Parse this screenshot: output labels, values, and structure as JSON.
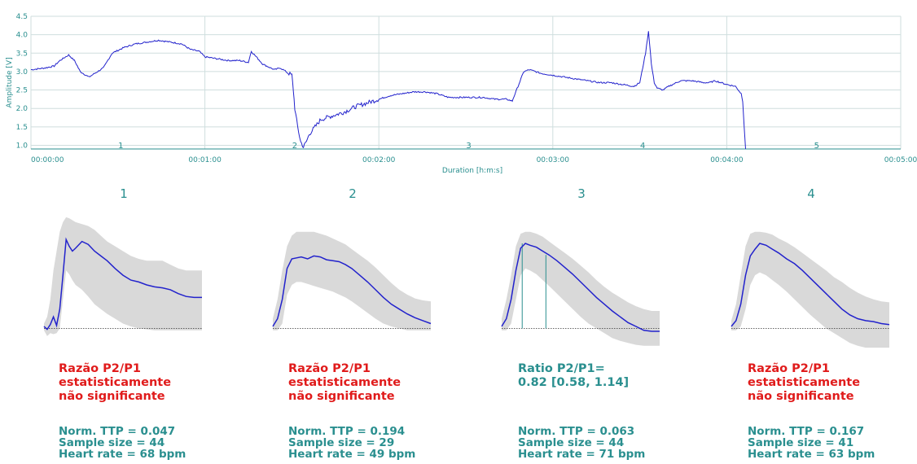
{
  "chart_data": [
    {
      "type": "line",
      "title": "",
      "xlabel": "Duration [h:m:s]",
      "ylabel": "Amplitude [V]",
      "ylim": [
        0.9,
        4.5
      ],
      "xlim": [
        "00:00:00",
        "00:05:00"
      ],
      "y_ticks": [
        "1.0",
        "1.5",
        "2.0",
        "2.5",
        "3.0",
        "3.5",
        "4.0",
        "4.5"
      ],
      "x_ticks": [
        "00:00:00",
        "00:01:00",
        "00:02:00",
        "00:03:00",
        "00:04:00",
        "00:05:00"
      ],
      "grid": true,
      "line_color": "#2222cc",
      "segment_labels": [
        {
          "label": "1",
          "x": "00:00:31"
        },
        {
          "label": "2",
          "x": "00:01:31"
        },
        {
          "label": "3",
          "x": "00:02:31"
        },
        {
          "label": "4",
          "x": "00:03:31"
        },
        {
          "label": "5",
          "x": "00:04:31"
        }
      ],
      "x_seconds": [
        0,
        5,
        8,
        10,
        13,
        15,
        17,
        20,
        22,
        25,
        28,
        32,
        36,
        40,
        44,
        48,
        52,
        55,
        58,
        60,
        64,
        68,
        72,
        75,
        76,
        80,
        84,
        86,
        88,
        90,
        90.5,
        91,
        92,
        93,
        94,
        95,
        96,
        98,
        100,
        104,
        108,
        112,
        116,
        120,
        124,
        128,
        132,
        136,
        140,
        144,
        148,
        152,
        156,
        160,
        164,
        166,
        168,
        170,
        172,
        176,
        180,
        184,
        188,
        192,
        196,
        200,
        204,
        208,
        210,
        212,
        213,
        214,
        215,
        216,
        218,
        220,
        224,
        228,
        232,
        234,
        236,
        238,
        240,
        243,
        245,
        245.5,
        246,
        246.5
      ],
      "y_values": [
        3.05,
        3.1,
        3.15,
        3.3,
        3.45,
        3.3,
        3.0,
        2.85,
        2.95,
        3.1,
        3.5,
        3.65,
        3.75,
        3.8,
        3.85,
        3.8,
        3.75,
        3.6,
        3.55,
        3.4,
        3.35,
        3.3,
        3.3,
        3.25,
        3.55,
        3.2,
        3.05,
        3.1,
        3.0,
        2.9,
        2.5,
        2.0,
        1.5,
        1.1,
        0.95,
        1.1,
        1.3,
        1.5,
        1.7,
        1.8,
        1.9,
        2.05,
        2.15,
        2.25,
        2.35,
        2.4,
        2.45,
        2.45,
        2.4,
        2.3,
        2.3,
        2.3,
        2.3,
        2.25,
        2.25,
        2.2,
        2.6,
        3.0,
        3.05,
        2.95,
        2.9,
        2.85,
        2.8,
        2.75,
        2.7,
        2.7,
        2.65,
        2.6,
        2.7,
        3.5,
        4.1,
        3.2,
        2.7,
        2.55,
        2.5,
        2.6,
        2.75,
        2.75,
        2.7,
        2.7,
        2.75,
        2.7,
        2.65,
        2.6,
        2.4,
        2.2,
        1.5,
        0.9
      ]
    },
    {
      "type": "area",
      "title": "1",
      "x": [
        0,
        0.02,
        0.04,
        0.06,
        0.08,
        0.1,
        0.12,
        0.14,
        0.16,
        0.18,
        0.2,
        0.24,
        0.28,
        0.32,
        0.36,
        0.4,
        0.45,
        0.5,
        0.55,
        0.6,
        0.65,
        0.7,
        0.75,
        0.8,
        0.85,
        0.9,
        0.95,
        1.0
      ],
      "mean": [
        0.02,
        -0.01,
        0.04,
        0.12,
        0.03,
        0.2,
        0.55,
        0.92,
        0.85,
        0.8,
        0.83,
        0.9,
        0.87,
        0.8,
        0.75,
        0.7,
        0.62,
        0.55,
        0.5,
        0.48,
        0.45,
        0.43,
        0.42,
        0.4,
        0.36,
        0.33,
        0.32,
        0.32
      ],
      "upper": [
        0.05,
        0.12,
        0.3,
        0.6,
        0.8,
        1.0,
        1.1,
        1.15,
        1.14,
        1.12,
        1.1,
        1.08,
        1.06,
        1.02,
        0.96,
        0.9,
        0.85,
        0.8,
        0.75,
        0.72,
        0.7,
        0.7,
        0.7,
        0.66,
        0.62,
        0.6,
        0.6,
        0.6
      ],
      "lower": [
        -0.02,
        -0.08,
        -0.05,
        -0.06,
        -0.05,
        0.0,
        0.3,
        0.6,
        0.56,
        0.5,
        0.45,
        0.4,
        0.33,
        0.25,
        0.2,
        0.15,
        0.1,
        0.05,
        0.02,
        0.0,
        -0.01,
        -0.02,
        -0.02,
        -0.02,
        -0.02,
        -0.02,
        -0.02,
        -0.02
      ],
      "baseline": 0,
      "markers": []
    },
    {
      "type": "area",
      "title": "2",
      "x": [
        0,
        0.03,
        0.06,
        0.09,
        0.12,
        0.15,
        0.18,
        0.22,
        0.26,
        0.3,
        0.34,
        0.38,
        0.42,
        0.46,
        0.5,
        0.55,
        0.6,
        0.65,
        0.7,
        0.75,
        0.8,
        0.85,
        0.9,
        0.95,
        1.0
      ],
      "mean": [
        0.02,
        0.1,
        0.3,
        0.62,
        0.72,
        0.73,
        0.74,
        0.72,
        0.75,
        0.74,
        0.71,
        0.7,
        0.69,
        0.66,
        0.62,
        0.55,
        0.48,
        0.4,
        0.32,
        0.25,
        0.2,
        0.15,
        0.11,
        0.08,
        0.05
      ],
      "upper": [
        0.1,
        0.3,
        0.6,
        0.85,
        0.96,
        1.0,
        1.0,
        1.0,
        1.0,
        0.98,
        0.96,
        0.93,
        0.9,
        0.87,
        0.82,
        0.76,
        0.7,
        0.63,
        0.55,
        0.47,
        0.4,
        0.35,
        0.31,
        0.29,
        0.28
      ],
      "lower": [
        -0.02,
        -0.02,
        0.05,
        0.35,
        0.45,
        0.48,
        0.48,
        0.46,
        0.44,
        0.42,
        0.4,
        0.38,
        0.35,
        0.32,
        0.28,
        0.22,
        0.16,
        0.1,
        0.05,
        0.02,
        0.0,
        -0.02,
        -0.02,
        -0.02,
        -0.02
      ],
      "baseline": 0,
      "markers": []
    },
    {
      "type": "area",
      "title": "3",
      "x": [
        0,
        0.03,
        0.06,
        0.09,
        0.12,
        0.15,
        0.18,
        0.22,
        0.26,
        0.3,
        0.35,
        0.4,
        0.45,
        0.5,
        0.55,
        0.6,
        0.65,
        0.7,
        0.75,
        0.8,
        0.85,
        0.9,
        0.95,
        1.0
      ],
      "mean": [
        0.02,
        0.1,
        0.3,
        0.6,
        0.83,
        0.88,
        0.86,
        0.84,
        0.8,
        0.76,
        0.7,
        0.63,
        0.56,
        0.48,
        0.4,
        0.32,
        0.25,
        0.18,
        0.12,
        0.06,
        0.02,
        -0.02,
        -0.03,
        -0.03
      ],
      "upper": [
        0.1,
        0.3,
        0.55,
        0.85,
        0.98,
        1.0,
        1.0,
        0.98,
        0.95,
        0.9,
        0.84,
        0.78,
        0.72,
        0.65,
        0.58,
        0.5,
        0.43,
        0.37,
        0.32,
        0.27,
        0.23,
        0.2,
        0.18,
        0.18
      ],
      "lower": [
        -0.02,
        -0.02,
        0.05,
        0.3,
        0.55,
        0.62,
        0.6,
        0.56,
        0.5,
        0.44,
        0.36,
        0.28,
        0.2,
        0.12,
        0.05,
        0.0,
        -0.05,
        -0.1,
        -0.13,
        -0.15,
        -0.17,
        -0.18,
        -0.18,
        -0.18
      ],
      "baseline": 0,
      "markers": [
        0.13,
        0.28
      ]
    },
    {
      "type": "area",
      "title": "4",
      "x": [
        0,
        0.03,
        0.06,
        0.09,
        0.12,
        0.15,
        0.18,
        0.22,
        0.26,
        0.3,
        0.35,
        0.4,
        0.45,
        0.5,
        0.55,
        0.6,
        0.65,
        0.7,
        0.75,
        0.8,
        0.85,
        0.9,
        0.95,
        1.0
      ],
      "mean": [
        0.02,
        0.08,
        0.25,
        0.55,
        0.75,
        0.82,
        0.88,
        0.86,
        0.82,
        0.78,
        0.72,
        0.67,
        0.6,
        0.52,
        0.44,
        0.36,
        0.28,
        0.2,
        0.14,
        0.1,
        0.08,
        0.07,
        0.05,
        0.04
      ],
      "upper": [
        0.08,
        0.25,
        0.55,
        0.85,
        0.98,
        1.0,
        1.0,
        0.99,
        0.97,
        0.93,
        0.89,
        0.84,
        0.78,
        0.72,
        0.66,
        0.6,
        0.53,
        0.48,
        0.42,
        0.37,
        0.33,
        0.3,
        0.28,
        0.27
      ],
      "lower": [
        -0.02,
        -0.02,
        0.02,
        0.2,
        0.45,
        0.55,
        0.58,
        0.55,
        0.5,
        0.45,
        0.38,
        0.3,
        0.22,
        0.14,
        0.07,
        0.0,
        -0.05,
        -0.1,
        -0.15,
        -0.18,
        -0.2,
        -0.2,
        -0.2,
        -0.2
      ],
      "baseline": 0,
      "markers": []
    }
  ],
  "panels": [
    {
      "title": "1",
      "status": "Razão P2/P1\nestatisticamente\nnão significante",
      "status_color": "red",
      "ttp": "Norm. TTP = 0.047",
      "sample": "Sample size = 44",
      "hr": "Heart rate = 68 bpm"
    },
    {
      "title": "2",
      "status": "Razão P2/P1\nestatisticamente\nnão significante",
      "status_color": "red",
      "ttp": "Norm. TTP = 0.194",
      "sample": "Sample size = 29",
      "hr": "Heart rate = 49 bpm"
    },
    {
      "title": "3",
      "status": "Ratio P2/P1=\n0.82 [0.58, 1.14]",
      "status_color": "teal",
      "ttp": "Norm. TTP = 0.063",
      "sample": "Sample size = 44",
      "hr": "Heart rate = 71 bpm"
    },
    {
      "title": "4",
      "status": "Razão P2/P1\nestatisticamente\nnão significante",
      "status_color": "red",
      "ttp": "Norm. TTP = 0.167",
      "sample": "Sample size = 41",
      "hr": "Heart rate = 63 bpm"
    }
  ],
  "colors": {
    "line": "#2222cc",
    "band": "#d9d9d9",
    "teal": "#2a8f8f",
    "red": "#e01b1b",
    "grid": "#cfdede"
  }
}
